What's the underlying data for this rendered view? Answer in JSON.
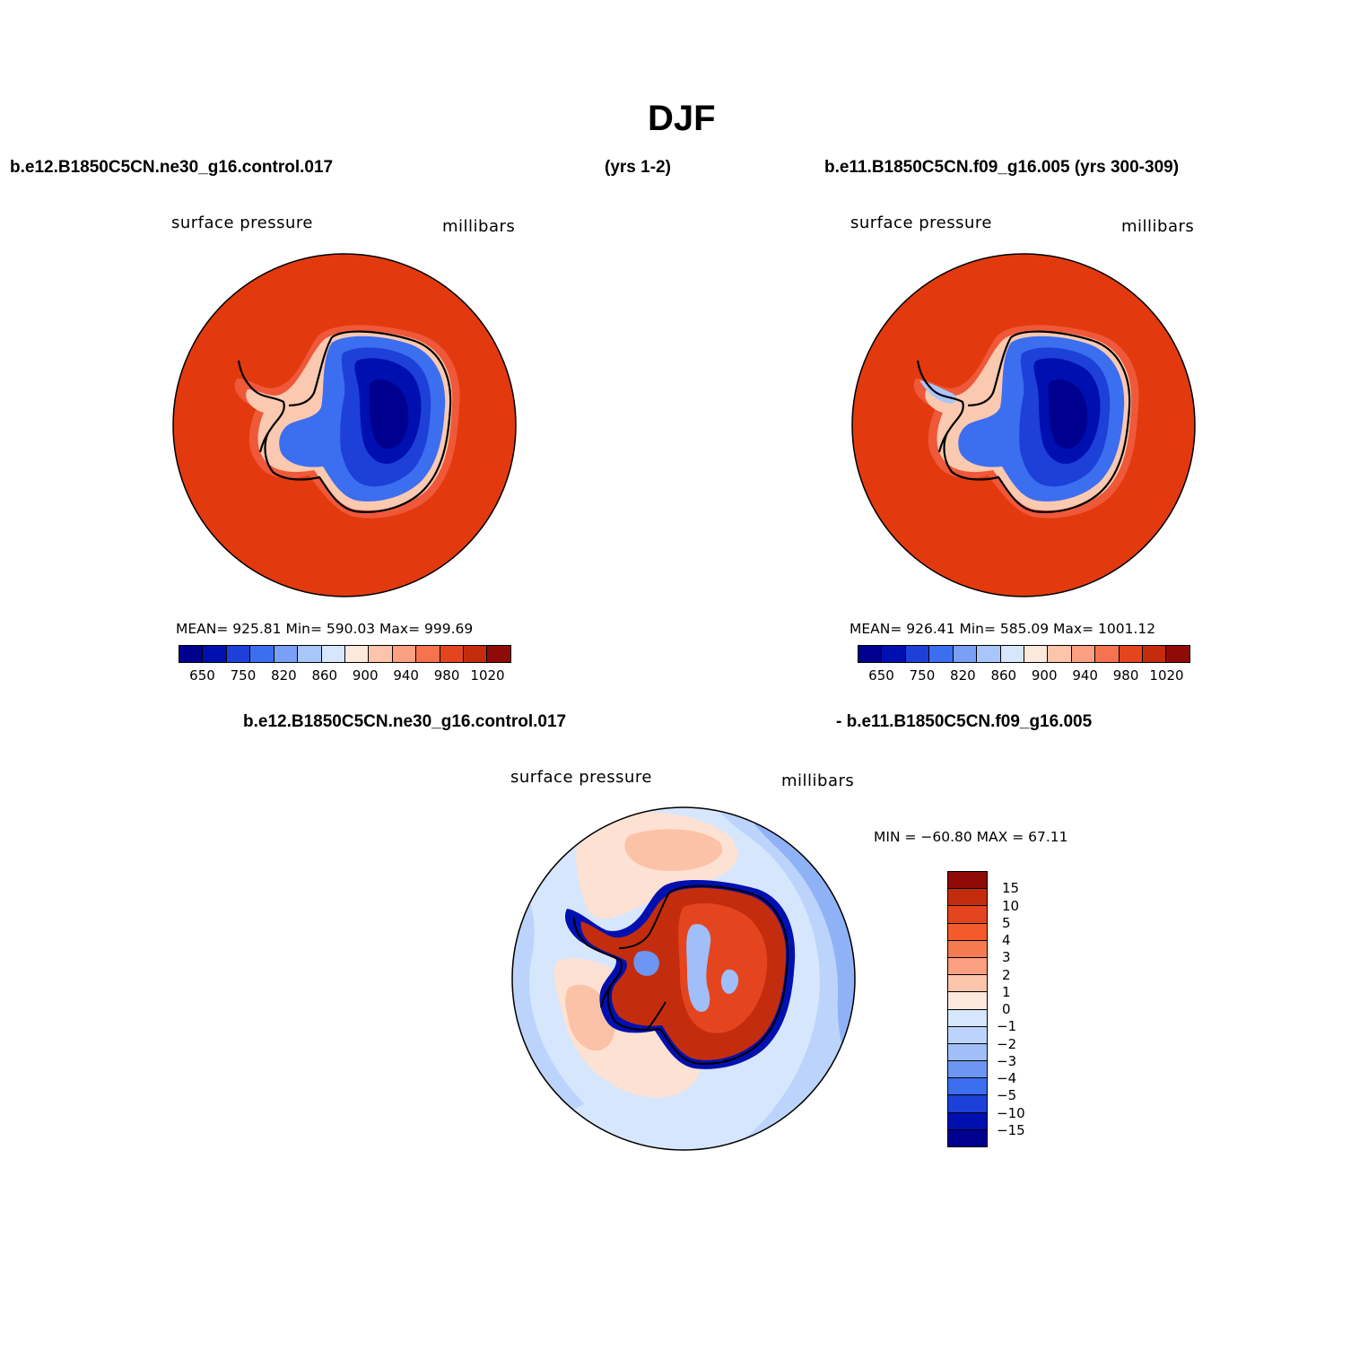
{
  "title": "DJF",
  "headers": {
    "case_a": "b.e12.B1850C5CN.ne30_g16.control.017",
    "case_a_years": "(yrs 1-2)",
    "case_b": "b.e11.B1850C5CN.f09_g16.005 (yrs 300-309)",
    "diff_left": "b.e12.B1850C5CN.ne30_g16.control.017",
    "diff_right": "- b.e11.B1850C5CN.f09_g16.005"
  },
  "panels": [
    {
      "variable": "surface pressure",
      "units": "millibars",
      "stats": "MEAN= 925.81   Min= 590.03   Max= 999.69",
      "colorbar_ticks": [
        "650",
        "750",
        "820",
        "860",
        "900",
        "940",
        "980",
        "1020"
      ],
      "colorbar_colors": [
        "#00008f",
        "#0010b0",
        "#1d40d8",
        "#3c6ef0",
        "#7aa0f5",
        "#a9c6fa",
        "#d6e6fd",
        "#fde8dc",
        "#fcc5ab",
        "#fba080",
        "#f67350",
        "#e4451f",
        "#c32d0e",
        "#8f0b07"
      ]
    },
    {
      "variable": "surface pressure",
      "units": "millibars",
      "stats": "MEAN= 926.41   Min= 585.09   Max= 1001.12",
      "colorbar_ticks": [
        "650",
        "750",
        "820",
        "860",
        "900",
        "940",
        "980",
        "1020"
      ],
      "colorbar_colors": [
        "#00008f",
        "#0010b0",
        "#1d40d8",
        "#3c6ef0",
        "#7aa0f5",
        "#a9c6fa",
        "#d6e6fd",
        "#fde8dc",
        "#fcc5ab",
        "#fba080",
        "#f67350",
        "#e4451f",
        "#c32d0e",
        "#8f0b07"
      ]
    }
  ],
  "difference": {
    "variable": "surface pressure",
    "units": "millibars",
    "stats": "MIN = −60.80 MAX =   67.11",
    "colorbar_ticks": [
      "15",
      "10",
      "5",
      "4",
      "3",
      "2",
      "1",
      "0",
      "−1",
      "−2",
      "−3",
      "−4",
      "−5",
      "−10",
      "−15"
    ],
    "colorbar_colors": [
      "#8f0b07",
      "#c32d0e",
      "#e4451f",
      "#f35a2c",
      "#f67a4f",
      "#fa9f80",
      "#fcc5ab",
      "#fde8dc",
      "#d6e6fd",
      "#bcd4fb",
      "#a0bff8",
      "#6d96f2",
      "#3c6ef0",
      "#1d40d8",
      "#0010b0",
      "#00008f"
    ]
  },
  "map_colors": {
    "ocean_full": "#e23a0e",
    "coast_ring": "#f0583a",
    "shelf": "#fbc9b0",
    "low1": "#3c6ef0",
    "low2": "#1d40d8",
    "low3": "#0010b0",
    "low4": "#00008f",
    "diff_ocean": "#d6e6fd",
    "diff_pos": "#fde1d2",
    "diff_pos2": "#fbc2a8",
    "diff_blue1": "#bcd4fb",
    "diff_blue2": "#8fb2f7",
    "diff_blue3": "#3c6ef0",
    "diff_red": "#c32d0e",
    "diff_red2": "#e4451f",
    "diff_darkblue": "#0010b0"
  }
}
